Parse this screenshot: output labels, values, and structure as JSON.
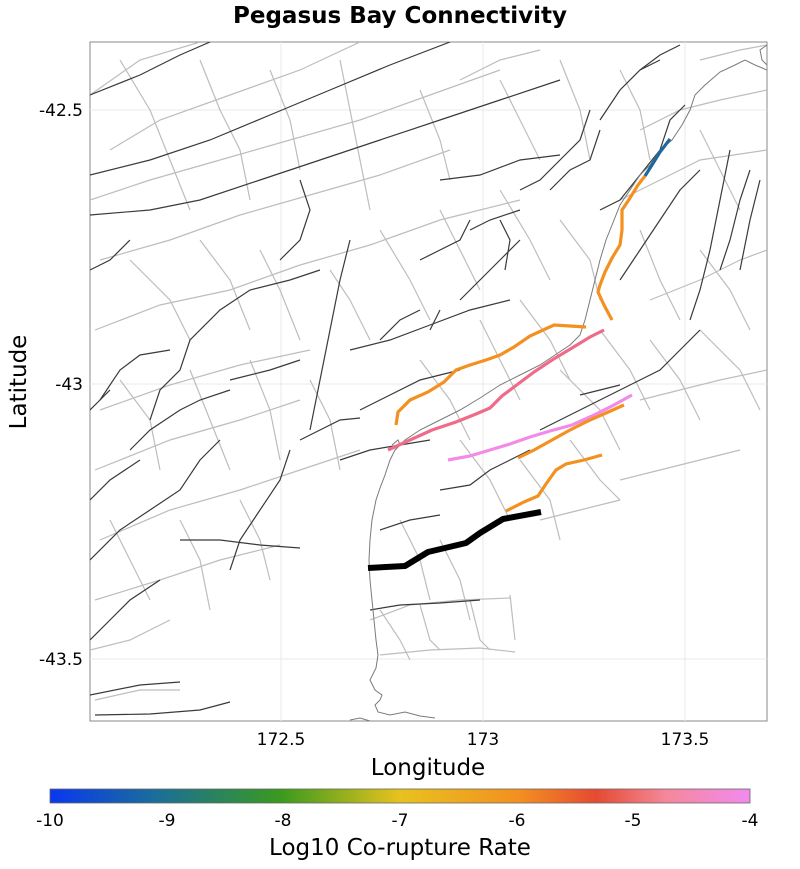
{
  "title": "Pegasus Bay Connectivity",
  "xaxis": {
    "label": "Longitude",
    "ticks": [
      "172.5",
      "173",
      "173.5"
    ]
  },
  "yaxis": {
    "label": "Latitude",
    "ticks": [
      "-42.5",
      "-43",
      "-43.5"
    ]
  },
  "colorbar": {
    "label": "Log10 Co-rupture Rate",
    "ticks": [
      "-10",
      "-9",
      "-8",
      "-7",
      "-6",
      "-5",
      "-4"
    ],
    "stops": [
      "#0a37f0",
      "#1a6e9a",
      "#3a9a1e",
      "#e8c21e",
      "#f39020",
      "#e54a32",
      "#f4889a",
      "#f28af0"
    ]
  },
  "highlighted_faults": [
    {
      "name": "source-fault",
      "color": "#000000",
      "log10_rate": null
    },
    {
      "name": "fault-orange-northeast",
      "color": "#f39020",
      "log10_rate": -6
    },
    {
      "name": "fault-blue-northeast",
      "color": "#1a6aa0",
      "log10_rate": -9
    },
    {
      "name": "fault-orange-central",
      "color": "#f39020",
      "log10_rate": -6
    },
    {
      "name": "fault-pink-central",
      "color": "#f06a8a",
      "log10_rate": -4.6
    },
    {
      "name": "fault-magenta-south",
      "color": "#f28ae8",
      "log10_rate": -4
    },
    {
      "name": "fault-orange-south",
      "color": "#f39020",
      "log10_rate": -6
    },
    {
      "name": "fault-orange-southeast",
      "color": "#f39020",
      "log10_rate": -6
    }
  ]
}
